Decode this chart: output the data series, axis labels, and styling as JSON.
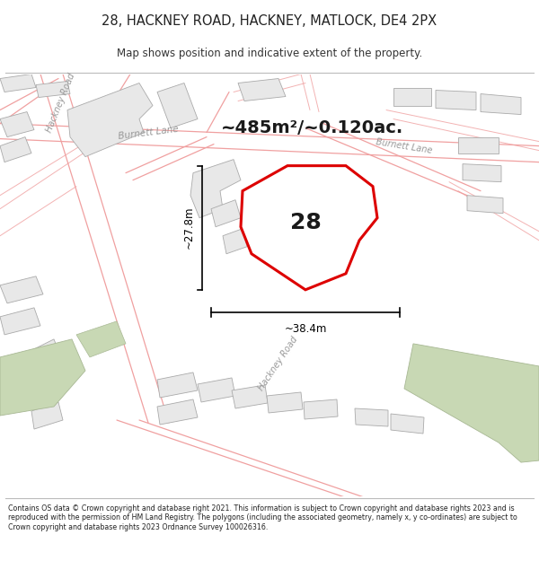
{
  "title_line1": "28, HACKNEY ROAD, HACKNEY, MATLOCK, DE4 2PX",
  "title_line2": "Map shows position and indicative extent of the property.",
  "footer_text": "Contains OS data © Crown copyright and database right 2021. This information is subject to Crown copyright and database rights 2023 and is reproduced with the permission of HM Land Registry. The polygons (including the associated geometry, namely x, y co-ordinates) are subject to Crown copyright and database rights 2023 Ordnance Survey 100026316.",
  "area_label": "~485m²/~0.120ac.",
  "property_number": "28",
  "dim_width": "~38.4m",
  "dim_height": "~27.8m",
  "map_bg": "#ffffff",
  "building_fill": "#e8e8e8",
  "building_edge": "#aaaaaa",
  "road_edge_color": "#f0a0a0",
  "property_fill": "#ffffff",
  "property_stroke": "#dd0000",
  "green_fill": "#c8d8b4",
  "green_edge": "#a8b894",
  "label_color": "#999999",
  "dim_color": "#000000",
  "area_fontsize": 14,
  "num_fontsize": 18
}
